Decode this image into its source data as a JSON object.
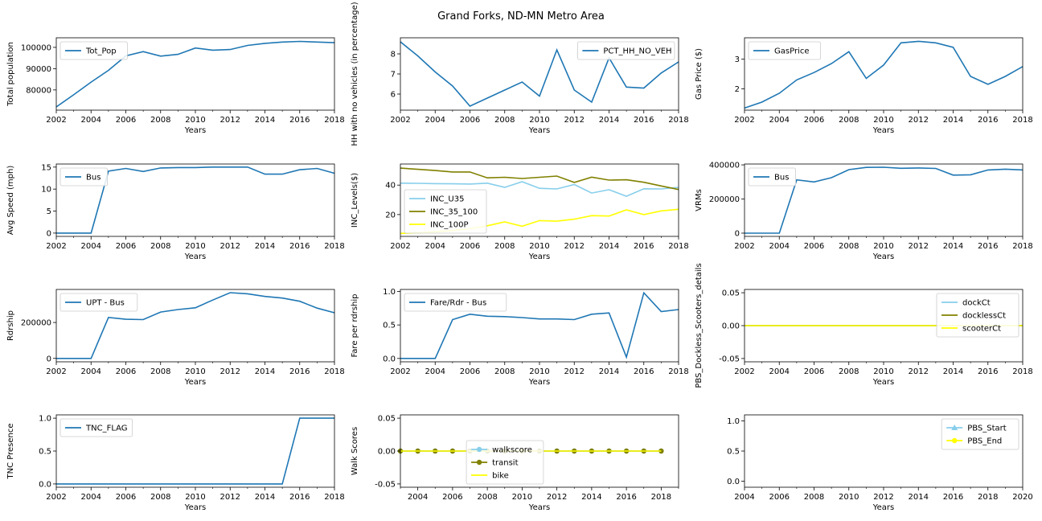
{
  "figure": {
    "title": "Grand Forks, ND-MN Metro Area"
  },
  "chart_data": [
    {
      "type": "line",
      "xlabel": "Years",
      "ylabel": "Total population",
      "xlim": [
        2002,
        2018
      ],
      "ylim": [
        70500,
        104500
      ],
      "xticks": [
        2002,
        2004,
        2006,
        2008,
        2010,
        2012,
        2014,
        2016,
        2018
      ],
      "yticks": [
        80000,
        90000,
        100000
      ],
      "legend_position": "upper-left",
      "x": [
        2002,
        2003,
        2004,
        2005,
        2006,
        2007,
        2008,
        2009,
        2010,
        2011,
        2012,
        2013,
        2014,
        2015,
        2016,
        2017,
        2018
      ],
      "series": [
        {
          "name": "Tot_Pop",
          "color": "#1f77b4",
          "values": [
            72000,
            77700,
            83700,
            89200,
            96000,
            98000,
            95900,
            96700,
            99700,
            98700,
            99000,
            100900,
            101900,
            102500,
            102800,
            102500,
            102200
          ]
        }
      ]
    },
    {
      "type": "line",
      "xlabel": "Years",
      "ylabel": "HH with no vehicles (in percentage)",
      "xlim": [
        2002,
        2018
      ],
      "ylim": [
        5.2,
        8.8
      ],
      "xticks": [
        2002,
        2004,
        2006,
        2008,
        2010,
        2012,
        2014,
        2016,
        2018
      ],
      "yticks": [
        6,
        7,
        8
      ],
      "legend_position": "upper-right",
      "x": [
        2002,
        2003,
        2004,
        2005,
        2006,
        2007,
        2008,
        2009,
        2010,
        2011,
        2012,
        2013,
        2014,
        2015,
        2016,
        2017,
        2018
      ],
      "series": [
        {
          "name": "PCT_HH_NO_VEH",
          "color": "#1f77b4",
          "values": [
            8.6,
            7.9,
            7.1,
            6.4,
            5.4,
            5.8,
            6.2,
            6.6,
            5.9,
            8.2,
            6.2,
            5.6,
            7.8,
            6.35,
            6.3,
            7.05,
            7.6
          ]
        }
      ]
    },
    {
      "type": "line",
      "xlabel": "Years",
      "ylabel": "Gas Price ($)",
      "xlim": [
        2002,
        2018
      ],
      "ylim": [
        1.28,
        3.72
      ],
      "xticks": [
        2002,
        2004,
        2006,
        2008,
        2010,
        2012,
        2014,
        2016,
        2018
      ],
      "yticks": [
        2,
        3
      ],
      "legend_position": "upper-left",
      "x": [
        2002,
        2003,
        2004,
        2005,
        2006,
        2007,
        2008,
        2009,
        2010,
        2011,
        2012,
        2013,
        2014,
        2015,
        2016,
        2017,
        2018
      ],
      "series": [
        {
          "name": "GasPrice",
          "color": "#1f77b4",
          "values": [
            1.35,
            1.55,
            1.85,
            2.3,
            2.55,
            2.85,
            3.25,
            2.35,
            2.8,
            3.55,
            3.6,
            3.55,
            3.4,
            2.42,
            2.15,
            2.42,
            2.75
          ]
        }
      ]
    },
    {
      "type": "line",
      "xlabel": "Years",
      "ylabel": "Avg Speed (mph)",
      "xlim": [
        2002,
        2018
      ],
      "ylim": [
        -0.75,
        15.7
      ],
      "xticks": [
        2002,
        2004,
        2006,
        2008,
        2010,
        2012,
        2014,
        2016,
        2018
      ],
      "yticks": [
        0,
        5,
        10,
        15
      ],
      "legend_position": "upper-left",
      "x": [
        2002,
        2003,
        2004,
        2005,
        2006,
        2007,
        2008,
        2009,
        2010,
        2011,
        2012,
        2013,
        2014,
        2015,
        2016,
        2017,
        2018
      ],
      "series": [
        {
          "name": "Bus",
          "color": "#1f77b4",
          "values": [
            0,
            0,
            0,
            14.1,
            14.7,
            14.0,
            14.8,
            14.9,
            14.9,
            15.0,
            15.0,
            15.0,
            13.4,
            13.4,
            14.4,
            14.7,
            13.6
          ]
        }
      ]
    },
    {
      "type": "line",
      "xlabel": "Years",
      "ylabel": "INC_Levels($)",
      "xlim": [
        2002,
        2018
      ],
      "ylim": [
        5.2,
        54.3
      ],
      "xticks": [
        2002,
        2004,
        2006,
        2008,
        2010,
        2012,
        2014,
        2016,
        2018
      ],
      "yticks": [
        20,
        40
      ],
      "legend_position": "lower-left",
      "x": [
        2002,
        2003,
        2004,
        2005,
        2006,
        2007,
        2008,
        2009,
        2010,
        2011,
        2012,
        2013,
        2014,
        2015,
        2016,
        2017,
        2018
      ],
      "series": [
        {
          "name": "INC_U35",
          "color": "#87ceeb",
          "values": [
            41.3,
            41.2,
            41.0,
            40.9,
            40.7,
            41.3,
            38.5,
            42.3,
            37.8,
            37.4,
            40.4,
            34.6,
            36.9,
            32.4,
            37.5,
            37.4,
            38.5
          ]
        },
        {
          "name": "INC_35_100",
          "color": "#808000",
          "values": [
            51.5,
            50.7,
            49.9,
            48.9,
            48.9,
            44.9,
            45.3,
            44.5,
            45.3,
            46.1,
            41.8,
            45.4,
            43.4,
            43.6,
            41.9,
            39.4,
            37.0
          ]
        },
        {
          "name": "INC_100P",
          "color": "#ffff00",
          "values": [
            7.2,
            7.6,
            8.3,
            9.2,
            10.4,
            12.4,
            15.0,
            12.1,
            15.9,
            15.5,
            16.9,
            19.3,
            19.0,
            23.2,
            20.0,
            22.5,
            23.6
          ]
        }
      ]
    },
    {
      "type": "line",
      "xlabel": "Years",
      "ylabel": "VRMs",
      "xlim": [
        2002,
        2018
      ],
      "ylim": [
        -19000,
        405000
      ],
      "xticks": [
        2002,
        2004,
        2006,
        2008,
        2010,
        2012,
        2014,
        2016,
        2018
      ],
      "yticks": [
        0,
        200000,
        400000
      ],
      "legend_position": "upper-left",
      "x": [
        2002,
        2003,
        2004,
        2005,
        2006,
        2007,
        2008,
        2009,
        2010,
        2011,
        2012,
        2013,
        2014,
        2015,
        2016,
        2017,
        2018
      ],
      "series": [
        {
          "name": "Bus",
          "color": "#1f77b4",
          "values": [
            0,
            0,
            0,
            312000,
            300000,
            325000,
            372000,
            385000,
            386000,
            380000,
            382000,
            379000,
            340000,
            342000,
            370000,
            375000,
            370000
          ]
        }
      ]
    },
    {
      "type": "line",
      "xlabel": "Years",
      "ylabel": "Rdrship",
      "xlim": [
        2002,
        2018
      ],
      "ylim": [
        -19000,
        384000
      ],
      "xticks": [
        2002,
        2004,
        2006,
        2008,
        2010,
        2012,
        2014,
        2016,
        2018
      ],
      "yticks": [
        0,
        200000
      ],
      "legend_position": "upper-left",
      "x": [
        2002,
        2003,
        2004,
        2005,
        2006,
        2007,
        2008,
        2009,
        2010,
        2011,
        2012,
        2013,
        2014,
        2015,
        2016,
        2017,
        2018
      ],
      "series": [
        {
          "name": "UPT - Bus",
          "color": "#1f77b4",
          "values": [
            0,
            0,
            0,
            228000,
            218000,
            216000,
            258000,
            272000,
            282000,
            325000,
            366000,
            360000,
            345000,
            336000,
            318000,
            280000,
            254000
          ]
        }
      ]
    },
    {
      "type": "line",
      "xlabel": "Years",
      "ylabel": "Fare per rdrship",
      "xlim": [
        2002,
        2018
      ],
      "ylim": [
        -0.05,
        1.03
      ],
      "xticks": [
        2002,
        2004,
        2006,
        2008,
        2010,
        2012,
        2014,
        2016,
        2018
      ],
      "yticks": [
        0.0,
        0.5,
        1.0
      ],
      "legend_position": "upper-left",
      "x": [
        2002,
        2003,
        2004,
        2005,
        2006,
        2007,
        2008,
        2009,
        2010,
        2011,
        2012,
        2013,
        2014,
        2015,
        2016,
        2017,
        2018
      ],
      "series": [
        {
          "name": "Fare/Rdr - Bus",
          "color": "#1f77b4",
          "values": [
            0,
            0,
            0,
            0.58,
            0.66,
            0.63,
            0.625,
            0.61,
            0.59,
            0.59,
            0.58,
            0.66,
            0.68,
            0.02,
            0.98,
            0.7,
            0.73
          ]
        }
      ]
    },
    {
      "type": "line",
      "xlabel": "Years",
      "ylabel": "PBS_Dockless_Scooters_details",
      "xlim": [
        2002,
        2018
      ],
      "ylim": [
        -0.055,
        0.055
      ],
      "xticks": [
        2002,
        2004,
        2006,
        2008,
        2010,
        2012,
        2014,
        2016,
        2018
      ],
      "yticks": [
        -0.05,
        0.0,
        0.05
      ],
      "legend_position": "upper-right",
      "x": [
        2002,
        2003,
        2004,
        2005,
        2006,
        2007,
        2008,
        2009,
        2010,
        2011,
        2012,
        2013,
        2014,
        2015,
        2016,
        2017,
        2018
      ],
      "series": [
        {
          "name": "dockCt",
          "color": "#87ceeb",
          "values": [
            0,
            0,
            0,
            0,
            0,
            0,
            0,
            0,
            0,
            0,
            0,
            0,
            0,
            0,
            0,
            0,
            0
          ]
        },
        {
          "name": "docklessCt",
          "color": "#808000",
          "values": [
            0,
            0,
            0,
            0,
            0,
            0,
            0,
            0,
            0,
            0,
            0,
            0,
            0,
            0,
            0,
            0,
            0
          ]
        },
        {
          "name": "scooterCt",
          "color": "#ffff00",
          "values": [
            0,
            0,
            0,
            0,
            0,
            0,
            0,
            0,
            0,
            0,
            0,
            0,
            0,
            0,
            0,
            0,
            0
          ]
        }
      ]
    },
    {
      "type": "line",
      "xlabel": "Years",
      "ylabel": "TNC Presence",
      "xlim": [
        2002,
        2018
      ],
      "ylim": [
        -0.05,
        1.05
      ],
      "xticks": [
        2002,
        2004,
        2006,
        2008,
        2010,
        2012,
        2014,
        2016,
        2018
      ],
      "yticks": [
        0.0,
        0.5,
        1.0
      ],
      "legend_position": "upper-left",
      "x": [
        2002,
        2003,
        2004,
        2005,
        2006,
        2007,
        2008,
        2009,
        2010,
        2011,
        2012,
        2013,
        2014,
        2015,
        2016,
        2017,
        2018
      ],
      "series": [
        {
          "name": "TNC_FLAG",
          "color": "#1f77b4",
          "values": [
            0,
            0,
            0,
            0,
            0,
            0,
            0,
            0,
            0,
            0,
            0,
            0,
            0,
            0,
            1,
            1,
            1
          ]
        }
      ]
    },
    {
      "type": "line",
      "xlabel": "Years",
      "ylabel": "Walk Scores",
      "xlim": [
        2003,
        2019
      ],
      "ylim": [
        -0.055,
        0.055
      ],
      "xticks": [
        2004,
        2006,
        2008,
        2010,
        2012,
        2014,
        2016,
        2018
      ],
      "yticks": [
        -0.05,
        0.0,
        0.05
      ],
      "legend_position": "lower-center",
      "x": [
        2003,
        2004,
        2005,
        2006,
        2007,
        2008,
        2009,
        2010,
        2011,
        2012,
        2013,
        2014,
        2015,
        2016,
        2017,
        2018
      ],
      "series": [
        {
          "name": "walkscore",
          "color": "#87ceeb",
          "marker": "circle",
          "values": [
            0,
            0,
            0,
            0,
            0,
            0,
            0,
            0,
            0,
            0,
            0,
            0,
            0,
            0,
            0,
            0
          ]
        },
        {
          "name": "transit",
          "color": "#808000",
          "marker": "circle",
          "values": [
            0,
            0,
            0,
            0,
            0,
            0,
            0,
            0,
            0,
            0,
            0,
            0,
            0,
            0,
            0,
            0
          ]
        },
        {
          "name": "bike",
          "color": "#ffff00",
          "values": [
            0,
            0,
            0,
            0,
            0,
            0,
            0,
            0,
            0,
            0,
            0,
            0,
            0,
            0,
            0,
            0
          ]
        }
      ]
    },
    {
      "type": "line",
      "xlabel": "Years",
      "ylabel": "",
      "xlim": [
        2004,
        2020
      ],
      "ylim": [
        -0.1,
        1.1
      ],
      "xticks": [
        2004,
        2006,
        2008,
        2010,
        2012,
        2014,
        2016,
        2018,
        2020
      ],
      "yticks": [
        0.0,
        0.5,
        1.0
      ],
      "legend_position": "upper-right",
      "x": [],
      "series": [
        {
          "name": "PBS_Start",
          "color": "#87ceeb",
          "marker": "triangle",
          "values": []
        },
        {
          "name": "PBS_End",
          "color": "#ffff00",
          "marker": "circle",
          "values": []
        }
      ]
    }
  ]
}
